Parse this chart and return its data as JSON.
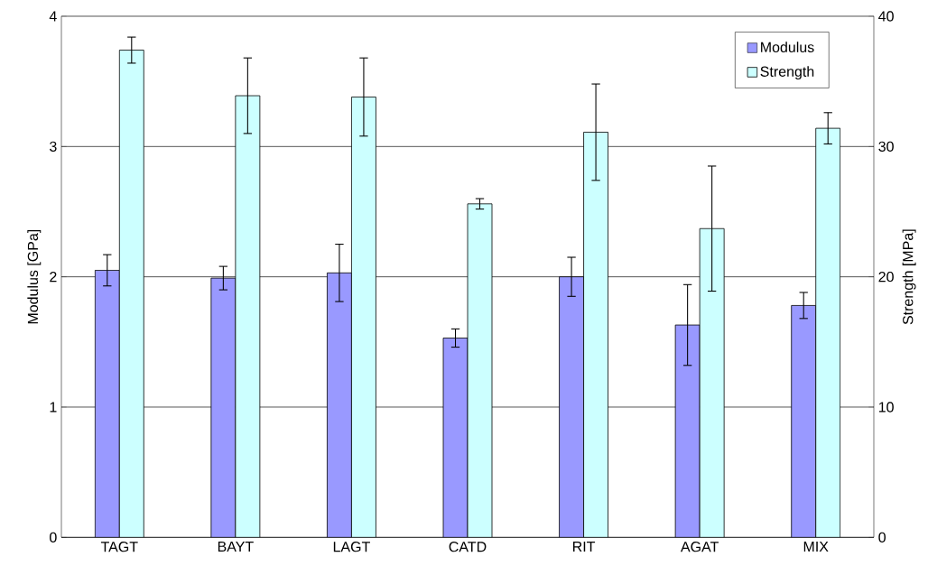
{
  "chart_data": {
    "type": "bar",
    "ylabel": "Modulus [GPa]",
    "y2label": "Strength [MPa]",
    "categories": [
      "TAGT",
      "BAYT",
      "LAGT",
      "CATD",
      "RIT",
      "AGAT",
      "MIX"
    ],
    "series": [
      {
        "name": "Modulus",
        "color": "#9999ff",
        "values": [
          2.05,
          1.99,
          2.03,
          1.53,
          2.0,
          1.63,
          1.78
        ],
        "errors": [
          0.12,
          0.09,
          0.22,
          0.07,
          0.15,
          0.31,
          0.1
        ]
      },
      {
        "name": "Strength",
        "color": "#ccffff",
        "axis": "y2",
        "values": [
          37.4,
          33.9,
          33.8,
          25.6,
          31.1,
          23.7,
          31.4
        ],
        "errors": [
          1.0,
          2.9,
          3.0,
          0.4,
          3.7,
          4.8,
          1.2
        ]
      }
    ],
    "ylim": [
      0,
      4
    ],
    "yticks": [
      0,
      1,
      2,
      3,
      4
    ],
    "y2lim": [
      0,
      40
    ],
    "y2ticks": [
      0,
      10,
      20,
      30,
      40
    ],
    "grid": "y",
    "legend": "top right"
  }
}
